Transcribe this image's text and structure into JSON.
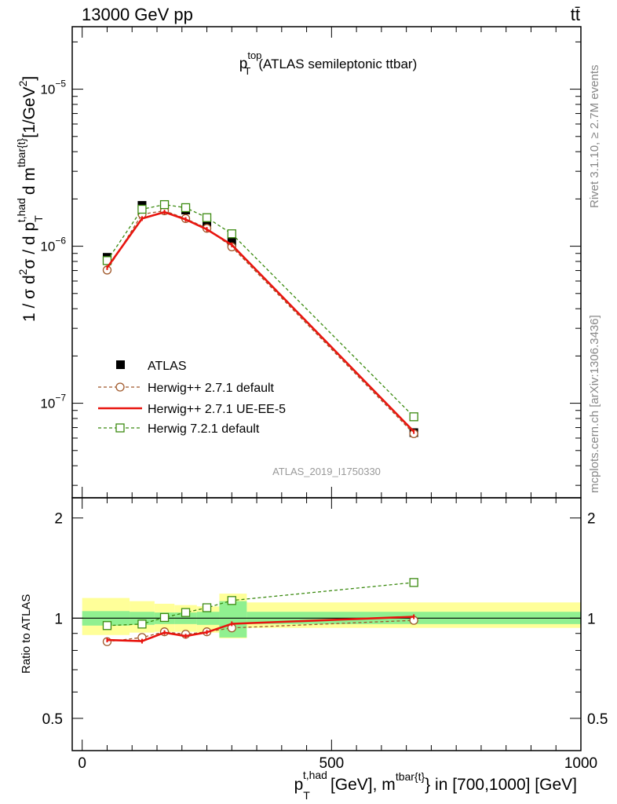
{
  "header": {
    "energy_label": "13000 GeV pp",
    "process_label": "tt̄"
  },
  "side": {
    "rivet_label": "Rivet 3.1.10, ≥ 2.7M events",
    "mcplots_label": "mcplots.cern.ch [arXiv:1306.3436]"
  },
  "chart_data": [
    {
      "type": "line",
      "panel": "main",
      "title_main": "p",
      "title_sup": "top",
      "title_sub": "T",
      "title_rest": "(ATLAS semileptonic ttbar)",
      "watermark": "ATLAS_2019_I1750330",
      "yscale": "log",
      "ylim": [
        2.5e-08,
        2.5e-05
      ],
      "xlim": [
        -20,
        1000
      ],
      "y_ticks": [
        {
          "value": 1e-07,
          "base": "10",
          "exp": "−7"
        },
        {
          "value": 1e-06,
          "base": "10",
          "exp": "−6"
        },
        {
          "value": 1e-05,
          "base": "10",
          "exp": "−5"
        }
      ],
      "ylabel": {
        "a": "1 / σ d",
        "a_sup": "2",
        "b": "σ / d p",
        "b_sup": "t,had",
        "b_sub": "T",
        "c": "d m",
        "c_sup": "tbar{t}",
        "d": "[1/GeV",
        "d_sup": "2",
        "e": "]"
      },
      "legend_position": "lower-left",
      "x": [
        50,
        120,
        165,
        207.5,
        250,
        300,
        665
      ],
      "series": [
        {
          "name": "ATLAS",
          "style": "data",
          "values": [
            8.5e-07,
            1.82e-06,
            1.84e-06,
            1.7e-06,
            1.42e-06,
            1.06e-06,
            6.5e-08
          ],
          "color": "#000000"
        },
        {
          "name": "Herwig++ 2.7.1 default",
          "style": "circle-dashed",
          "values": [
            7.05e-07,
            1.6e-06,
            1.68e-06,
            1.5e-06,
            1.3e-06,
            9.9e-07,
            6.4e-08
          ],
          "color": "#a0582a"
        },
        {
          "name": "Herwig++ 2.7.1 UE-EE-5",
          "style": "solid",
          "values": [
            7.3e-07,
            1.5e-06,
            1.65e-06,
            1.48e-06,
            1.28e-06,
            1.02e-06,
            6.6e-08
          ],
          "color": "#e8150f"
        },
        {
          "name": "Herwig 7.2.1 default",
          "style": "square-dashed",
          "values": [
            8.1e-07,
            1.72e-06,
            1.84e-06,
            1.76e-06,
            1.52e-06,
            1.2e-06,
            8.2e-08
          ],
          "color": "#3b8a10"
        }
      ]
    },
    {
      "type": "line",
      "panel": "ratio",
      "ylabel": "Ratio to ATLAS",
      "ylim": [
        0.4,
        2.3
      ],
      "yscale": "log",
      "y_ticks": [
        {
          "value": 0.5,
          "label": "0.5"
        },
        {
          "value": 1,
          "label": "1"
        },
        {
          "value": 2,
          "label": "2"
        }
      ],
      "x_ticks": [
        {
          "value": 0,
          "label": "0"
        },
        {
          "value": 500,
          "label": "500"
        },
        {
          "value": 1000,
          "label": "1000"
        }
      ],
      "xlabel": {
        "a": "p",
        "a_sup": "t,had",
        "a_sub": "T",
        "b": "[GeV], m",
        "b_sup": "tbar{t}",
        "c": "} in [700,1000] [GeV]"
      },
      "bands": [
        {
          "x0": 0,
          "x1": 95,
          "stat_lo": 0.95,
          "stat_hi": 1.05,
          "tot_lo": 0.89,
          "tot_hi": 1.15
        },
        {
          "x0": 95,
          "x1": 145,
          "stat_lo": 0.955,
          "stat_hi": 1.045,
          "tot_lo": 0.905,
          "tot_hi": 1.125
        },
        {
          "x0": 145,
          "x1": 185,
          "stat_lo": 0.96,
          "stat_hi": 1.04,
          "tot_lo": 0.91,
          "tot_hi": 1.105
        },
        {
          "x0": 185,
          "x1": 230,
          "stat_lo": 0.96,
          "stat_hi": 1.04,
          "tot_lo": 0.91,
          "tot_hi": 1.095
        },
        {
          "x0": 230,
          "x1": 275,
          "stat_lo": 0.955,
          "stat_hi": 1.045,
          "tot_lo": 0.905,
          "tot_hi": 1.085
        },
        {
          "x0": 275,
          "x1": 330,
          "stat_lo": 0.875,
          "stat_hi": 1.125,
          "tot_lo": 0.87,
          "tot_hi": 1.185
        },
        {
          "x0": 330,
          "x1": 1000,
          "stat_lo": 0.96,
          "stat_hi": 1.045,
          "tot_lo": 0.935,
          "tot_hi": 1.115
        }
      ],
      "x": [
        50,
        120,
        165,
        207.5,
        250,
        300,
        665
      ],
      "series": [
        {
          "name": "Herwig++ 2.7.1 default",
          "style": "circle-dashed",
          "values": [
            0.85,
            0.875,
            0.91,
            0.895,
            0.91,
            0.935,
            0.985
          ],
          "color": "#a0582a"
        },
        {
          "name": "Herwig++ 2.7.1 UE-EE-5",
          "style": "solid",
          "values": [
            0.86,
            0.853,
            0.905,
            0.883,
            0.907,
            0.962,
            1.01
          ],
          "color": "#e8150f"
        },
        {
          "name": "Herwig 7.2.1 default",
          "style": "square-dashed",
          "values": [
            0.95,
            0.96,
            1.005,
            1.04,
            1.075,
            1.13,
            1.28
          ],
          "color": "#3b8a10"
        }
      ]
    }
  ]
}
